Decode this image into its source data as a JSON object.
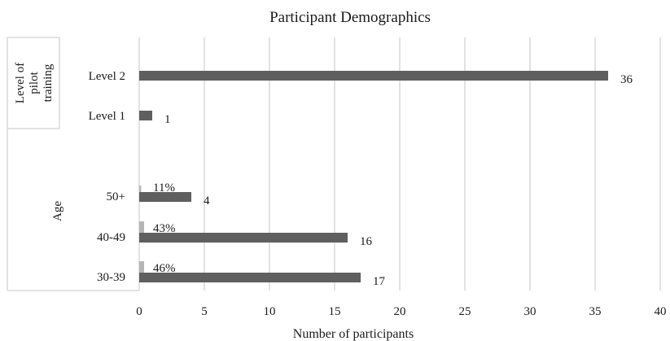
{
  "chart_data": {
    "type": "bar",
    "orientation": "horizontal",
    "title": "Participant Demographics",
    "xlabel": "Number of participants",
    "xlim": [
      0,
      40
    ],
    "xticks": [
      0,
      5,
      10,
      15,
      20,
      25,
      30,
      35,
      40
    ],
    "grid": "vertical",
    "legend": "none",
    "colors": {
      "count": "#5f5f5f",
      "percent": "#b5b5b5",
      "grid": "#d9d9d9"
    },
    "groups": [
      {
        "label": "Level of pilot training",
        "label_lines": [
          "Level of",
          "pilot",
          "training"
        ],
        "categories": [
          {
            "label": "Level 2",
            "value": 36,
            "value_label": "36"
          },
          {
            "label": "Level 1",
            "value": 1,
            "value_label": "1"
          }
        ]
      },
      {
        "label": "Age",
        "label_lines": [
          "Age"
        ],
        "categories": [
          {
            "label": "50+",
            "value": 4,
            "value_label": "4",
            "percent": 0.11,
            "percent_label": "11%"
          },
          {
            "label": "40-49",
            "value": 16,
            "value_label": "16",
            "percent": 0.43,
            "percent_label": "43%"
          },
          {
            "label": "30-39",
            "value": 17,
            "value_label": "17",
            "percent": 0.46,
            "percent_label": "46%"
          }
        ]
      }
    ]
  }
}
